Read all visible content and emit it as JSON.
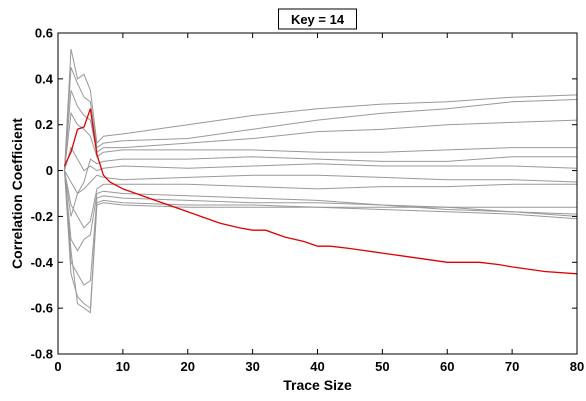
{
  "chart_data": {
    "type": "line",
    "title": "Key = 14",
    "xlabel": "Trace Size",
    "ylabel": "Correlation Coefficient",
    "xlim": [
      0,
      80
    ],
    "ylim": [
      -0.8,
      0.6
    ],
    "xticks": [
      0,
      10,
      20,
      30,
      40,
      50,
      60,
      70,
      80
    ],
    "yticks": [
      -0.8,
      -0.6,
      -0.4,
      -0.2,
      0,
      0.2,
      0.4,
      0.6
    ],
    "ytick_labels": [
      "-0.8",
      "-0.6",
      "-0.4",
      "-0.2",
      "0",
      "0.2",
      "0.4",
      "0.6"
    ],
    "grid": false,
    "colors": {
      "highlight": "#e00000",
      "others": "#999999"
    },
    "series": [
      {
        "highlight": true,
        "x": [
          1,
          2,
          3,
          4,
          5,
          6,
          7,
          8,
          10,
          15,
          20,
          22,
          25,
          28,
          30,
          32,
          35,
          38,
          40,
          42,
          45,
          50,
          55,
          60,
          63,
          65,
          68,
          70,
          75,
          80
        ],
        "y": [
          0.02,
          0.08,
          0.18,
          0.19,
          0.27,
          0.07,
          -0.02,
          -0.05,
          -0.08,
          -0.13,
          -0.18,
          -0.2,
          -0.23,
          -0.25,
          -0.26,
          -0.26,
          -0.29,
          -0.31,
          -0.33,
          -0.33,
          -0.34,
          -0.36,
          -0.38,
          -0.4,
          -0.4,
          -0.4,
          -0.41,
          -0.42,
          -0.44,
          -0.45
        ]
      },
      {
        "x": [
          1,
          2,
          3,
          4,
          5,
          6,
          7,
          10,
          20,
          30,
          40,
          50,
          60,
          70,
          80
        ],
        "y": [
          0.0,
          0.53,
          0.4,
          0.42,
          0.35,
          0.12,
          0.15,
          0.16,
          0.2,
          0.24,
          0.27,
          0.29,
          0.3,
          0.32,
          0.33
        ]
      },
      {
        "x": [
          1,
          2,
          3,
          4,
          5,
          6,
          7,
          10,
          20,
          30,
          40,
          50,
          60,
          70,
          80
        ],
        "y": [
          0.0,
          0.45,
          0.38,
          0.32,
          0.3,
          0.1,
          0.12,
          0.13,
          0.14,
          0.18,
          0.22,
          0.25,
          0.27,
          0.3,
          0.31
        ]
      },
      {
        "x": [
          1,
          2,
          3,
          4,
          5,
          6,
          7,
          10,
          20,
          30,
          40,
          50,
          60,
          70,
          80
        ],
        "y": [
          0.0,
          0.35,
          0.28,
          0.24,
          0.22,
          0.08,
          0.1,
          0.1,
          0.12,
          0.14,
          0.17,
          0.18,
          0.2,
          0.21,
          0.22
        ]
      },
      {
        "x": [
          1,
          2,
          3,
          4,
          5,
          6,
          7,
          10,
          20,
          30,
          40,
          50,
          60,
          70,
          80
        ],
        "y": [
          0.0,
          0.25,
          0.2,
          0.18,
          0.15,
          0.06,
          0.08,
          0.09,
          0.09,
          0.09,
          0.08,
          0.08,
          0.09,
          0.1,
          0.1
        ]
      },
      {
        "x": [
          1,
          2,
          3,
          4,
          5,
          6,
          7,
          10,
          20,
          30,
          40,
          50,
          60,
          70,
          80
        ],
        "y": [
          0.0,
          -0.2,
          -0.1,
          -0.05,
          0.05,
          0.03,
          0.04,
          0.05,
          0.05,
          0.06,
          0.05,
          0.04,
          0.04,
          0.06,
          0.06
        ]
      },
      {
        "x": [
          1,
          2,
          3,
          4,
          5,
          6,
          7,
          10,
          20,
          30,
          40,
          50,
          60,
          70,
          80
        ],
        "y": [
          0.0,
          0.1,
          0.05,
          0.0,
          0.02,
          0.0,
          0.01,
          0.02,
          0.01,
          0.02,
          0.03,
          0.02,
          0.02,
          0.02,
          0.01
        ]
      },
      {
        "x": [
          1,
          2,
          3,
          4,
          5,
          6,
          7,
          10,
          20,
          30,
          40,
          50,
          60,
          70,
          80
        ],
        "y": [
          0.0,
          -0.05,
          -0.1,
          -0.08,
          -0.05,
          -0.02,
          -0.03,
          -0.04,
          -0.03,
          -0.02,
          -0.02,
          -0.03,
          -0.04,
          -0.04,
          -0.05
        ]
      },
      {
        "x": [
          1,
          2,
          3,
          4,
          5,
          6,
          7,
          10,
          20,
          30,
          40,
          50,
          60,
          70,
          80
        ],
        "y": [
          0.0,
          -0.15,
          -0.2,
          -0.25,
          -0.22,
          -0.08,
          -0.06,
          -0.06,
          -0.06,
          -0.07,
          -0.08,
          -0.07,
          -0.07,
          -0.06,
          -0.06
        ]
      },
      {
        "x": [
          1,
          2,
          3,
          4,
          5,
          6,
          7,
          10,
          20,
          30,
          40,
          50,
          60,
          70,
          80
        ],
        "y": [
          0.0,
          -0.3,
          -0.35,
          -0.3,
          -0.28,
          -0.1,
          -0.09,
          -0.1,
          -0.11,
          -0.12,
          -0.13,
          -0.15,
          -0.17,
          -0.18,
          -0.19
        ]
      },
      {
        "x": [
          1,
          2,
          3,
          4,
          5,
          6,
          7,
          10,
          20,
          30,
          40,
          50,
          60,
          70,
          80
        ],
        "y": [
          0.0,
          -0.4,
          -0.45,
          -0.5,
          -0.48,
          -0.12,
          -0.11,
          -0.12,
          -0.13,
          -0.14,
          -0.14,
          -0.15,
          -0.16,
          -0.18,
          -0.2
        ]
      },
      {
        "x": [
          1,
          2,
          3,
          4,
          5,
          6,
          7,
          10,
          20,
          30,
          40,
          50,
          60,
          70,
          80
        ],
        "y": [
          0.0,
          -0.45,
          -0.55,
          -0.58,
          -0.6,
          -0.14,
          -0.13,
          -0.14,
          -0.15,
          -0.15,
          -0.16,
          -0.17,
          -0.18,
          -0.19,
          -0.21
        ]
      },
      {
        "x": [
          1,
          2,
          3,
          4,
          5,
          6,
          7,
          10,
          20,
          30,
          40,
          50,
          60,
          70,
          80
        ],
        "y": [
          0.0,
          -0.35,
          -0.58,
          -0.6,
          -0.62,
          -0.15,
          -0.14,
          -0.15,
          -0.16,
          -0.16,
          -0.16,
          -0.16,
          -0.16,
          -0.16,
          -0.16
        ]
      }
    ]
  }
}
